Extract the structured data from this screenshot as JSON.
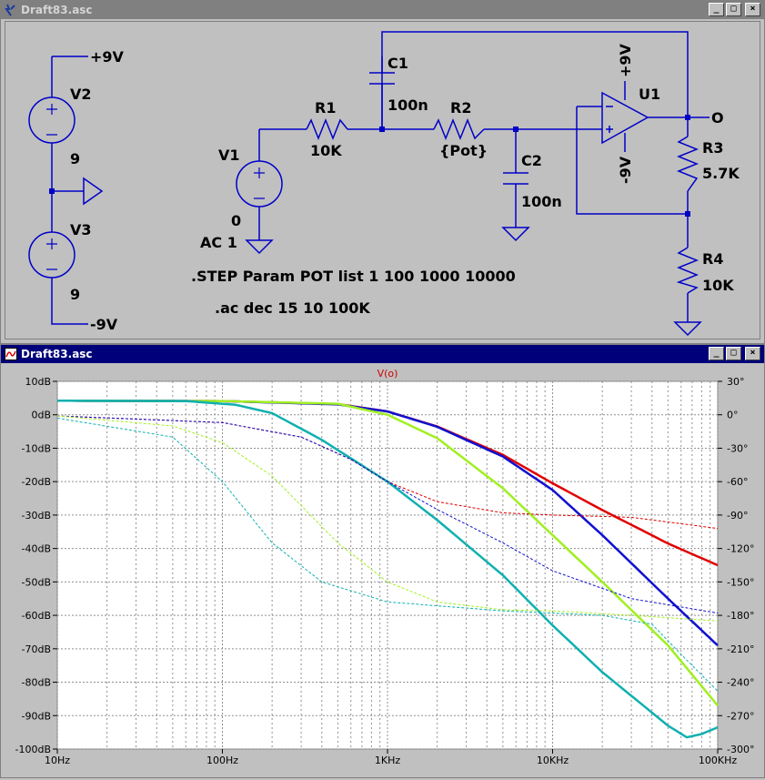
{
  "schematic_window": {
    "title": "Draft83.asc",
    "labels": {
      "v2_top": "+9V",
      "v2": "V2",
      "v2_val": "9",
      "v3": "V3",
      "v3_val": "9",
      "v3_bot": "-9V",
      "v1": "V1",
      "v1_dc": "0",
      "v1_ac": "AC 1",
      "r1": "R1",
      "r1_val": "10K",
      "c1": "C1",
      "c1_val": "100n",
      "r2": "R2",
      "r2_val": "{Pot}",
      "c2": "C2",
      "c2_val": "100n",
      "u1": "U1",
      "u1_pos": "+9V",
      "u1_neg": "-9V",
      "r3": "R3",
      "r3_val": "5.7K",
      "r4": "R4",
      "r4_val": "10K",
      "out": "O",
      "step_cmd": ".STEP Param POT list 1 100 1000 10000",
      "ac_cmd": ".ac dec 15 10 100K"
    }
  },
  "plot_window": {
    "title": "Draft83.asc",
    "trace_name": "V(o)"
  },
  "window_buttons": {
    "min": "_",
    "max": "□",
    "close": "×"
  },
  "chart_data": {
    "type": "line",
    "title": "V(o)",
    "x_scale": "log",
    "xlim": [
      10,
      100000
    ],
    "x_ticks": [
      "10Hz",
      "100Hz",
      "1KHz",
      "10KHz",
      "100KHz"
    ],
    "ylim": [
      -100,
      10
    ],
    "y_ticks": [
      "10dB",
      "0dB",
      "-10dB",
      "-20dB",
      "-30dB",
      "-40dB",
      "-50dB",
      "-60dB",
      "-70dB",
      "-80dB",
      "-90dB",
      "-100dB"
    ],
    "y2lim": [
      -300,
      30
    ],
    "y2_ticks": [
      "30°",
      "0°",
      "-30°",
      "-60°",
      "-90°",
      "-120°",
      "-150°",
      "-180°",
      "-210°",
      "-240°",
      "-270°",
      "-300°"
    ],
    "grid": true,
    "series": [
      {
        "color": "#e00000",
        "style": "solid",
        "points": [
          [
            10,
            4.2
          ],
          [
            100,
            4.1
          ],
          [
            500,
            3.2
          ],
          [
            1000,
            1
          ],
          [
            2000,
            -3.5
          ],
          [
            5000,
            -12
          ],
          [
            10000,
            -20.5
          ],
          [
            20000,
            -28.5
          ],
          [
            50000,
            -38.5
          ],
          [
            100000,
            -45
          ]
        ]
      },
      {
        "color": "#1010d0",
        "style": "solid",
        "points": [
          [
            10,
            4.2
          ],
          [
            100,
            4.1
          ],
          [
            500,
            3.1
          ],
          [
            1000,
            1
          ],
          [
            2000,
            -3.6
          ],
          [
            5000,
            -12.5
          ],
          [
            10000,
            -22.5
          ],
          [
            20000,
            -36
          ],
          [
            50000,
            -55
          ],
          [
            100000,
            -69
          ]
        ]
      },
      {
        "color": "#a0f020",
        "style": "solid",
        "points": [
          [
            10,
            4.2
          ],
          [
            100,
            4.1
          ],
          [
            500,
            3.3
          ],
          [
            1000,
            0
          ],
          [
            2000,
            -7
          ],
          [
            5000,
            -22
          ],
          [
            10000,
            -36
          ],
          [
            20000,
            -50
          ],
          [
            50000,
            -69
          ],
          [
            100000,
            -87
          ]
        ]
      },
      {
        "color": "#10b0b0",
        "style": "solid",
        "points": [
          [
            10,
            4.2
          ],
          [
            60,
            4.1
          ],
          [
            120,
            3
          ],
          [
            200,
            0.5
          ],
          [
            400,
            -7.5
          ],
          [
            1000,
            -20
          ],
          [
            2000,
            -31.5
          ],
          [
            5000,
            -48
          ],
          [
            10000,
            -63
          ],
          [
            20000,
            -77
          ],
          [
            50000,
            -93
          ],
          [
            65000,
            -96.5
          ],
          [
            80000,
            -95.5
          ],
          [
            100000,
            -93.5
          ]
        ]
      },
      {
        "color": "#e00000",
        "style": "dashed",
        "axis": "phase",
        "points": [
          [
            10,
            -1
          ],
          [
            100,
            -7
          ],
          [
            300,
            -20
          ],
          [
            600,
            -40
          ],
          [
            1000,
            -60
          ],
          [
            2000,
            -78
          ],
          [
            5000,
            -88
          ],
          [
            10000,
            -90
          ],
          [
            30000,
            -92
          ],
          [
            100000,
            -102
          ]
        ]
      },
      {
        "color": "#1010d0",
        "style": "dashed",
        "axis": "phase",
        "points": [
          [
            10,
            -1
          ],
          [
            100,
            -7
          ],
          [
            300,
            -20
          ],
          [
            600,
            -40
          ],
          [
            1000,
            -60
          ],
          [
            2000,
            -85
          ],
          [
            5000,
            -115
          ],
          [
            10000,
            -140
          ],
          [
            30000,
            -165
          ],
          [
            100000,
            -178
          ]
        ]
      },
      {
        "color": "#a0f020",
        "style": "dashed",
        "axis": "phase",
        "points": [
          [
            10,
            -1
          ],
          [
            50,
            -10
          ],
          [
            100,
            -25
          ],
          [
            200,
            -55
          ],
          [
            500,
            -115
          ],
          [
            1000,
            -150
          ],
          [
            2000,
            -168
          ],
          [
            5000,
            -175
          ],
          [
            10000,
            -176
          ],
          [
            30000,
            -180
          ],
          [
            100000,
            -185
          ]
        ]
      },
      {
        "color": "#10b0b0",
        "style": "dashed",
        "axis": "phase",
        "points": [
          [
            10,
            -3
          ],
          [
            50,
            -20
          ],
          [
            100,
            -60
          ],
          [
            200,
            -115
          ],
          [
            400,
            -150
          ],
          [
            1000,
            -168
          ],
          [
            5000,
            -176
          ],
          [
            20000,
            -180
          ],
          [
            40000,
            -188
          ],
          [
            60000,
            -215
          ],
          [
            100000,
            -248
          ]
        ]
      }
    ]
  }
}
